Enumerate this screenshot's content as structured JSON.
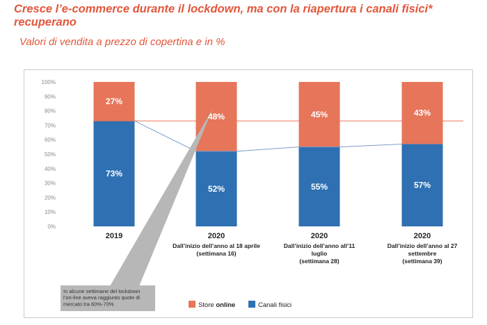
{
  "header": {
    "title": "Cresce l’e-commerce durante il lockdown, ma con la riapertura i canali fisici* recuperano",
    "subtitle": "Valori di vendita a prezzo di copertina e in %"
  },
  "chart_data": {
    "type": "bar",
    "stacked": true,
    "categories": [
      "2019",
      "2020",
      "2020",
      "2020"
    ],
    "category_sublabels": [
      [],
      [
        "Dall’inizio dell’anno al 18 aprile",
        "(settimana 16)"
      ],
      [
        "Dall’inizio dell’anno all’11",
        "luglio",
        "(settimana 28)"
      ],
      [
        "Dall’inizio dell’anno al 27",
        "settembre",
        "(settimana 39)"
      ]
    ],
    "series": [
      {
        "name": "Canali fisici",
        "values": [
          73,
          52,
          55,
          57
        ],
        "labels": [
          "73%",
          "52%",
          "55%",
          "57%"
        ],
        "color": "#2e70b2"
      },
      {
        "name": "Store online",
        "values": [
          27,
          48,
          45,
          43
        ],
        "labels": [
          "27%",
          "48%",
          "45%",
          "43%"
        ],
        "color": "#e6755a"
      }
    ],
    "legend": [
      {
        "prefix": "Store ",
        "bold": "online",
        "color": "#e6755a"
      },
      {
        "prefix": "Canali fisici",
        "bold": "",
        "color": "#2e70b2"
      }
    ],
    "y_ticks": [
      "0%",
      "10%",
      "20%",
      "30%",
      "40%",
      "50%",
      "60%",
      "70%",
      "80%",
      "90%",
      "100%"
    ],
    "ylim": [
      0,
      100
    ],
    "reference_line": {
      "value": 73,
      "color": "#e6755a"
    },
    "trend_line": {
      "values": [
        73,
        52,
        55,
        57
      ],
      "color": "#7d9cc6"
    },
    "callout": {
      "lines": [
        "In alcune settimane del lockdown",
        "l’on-line aveva raggiunto quote di",
        "mercato tra 60%-70%"
      ]
    },
    "legend_position": "bottom-right",
    "grid": false
  }
}
